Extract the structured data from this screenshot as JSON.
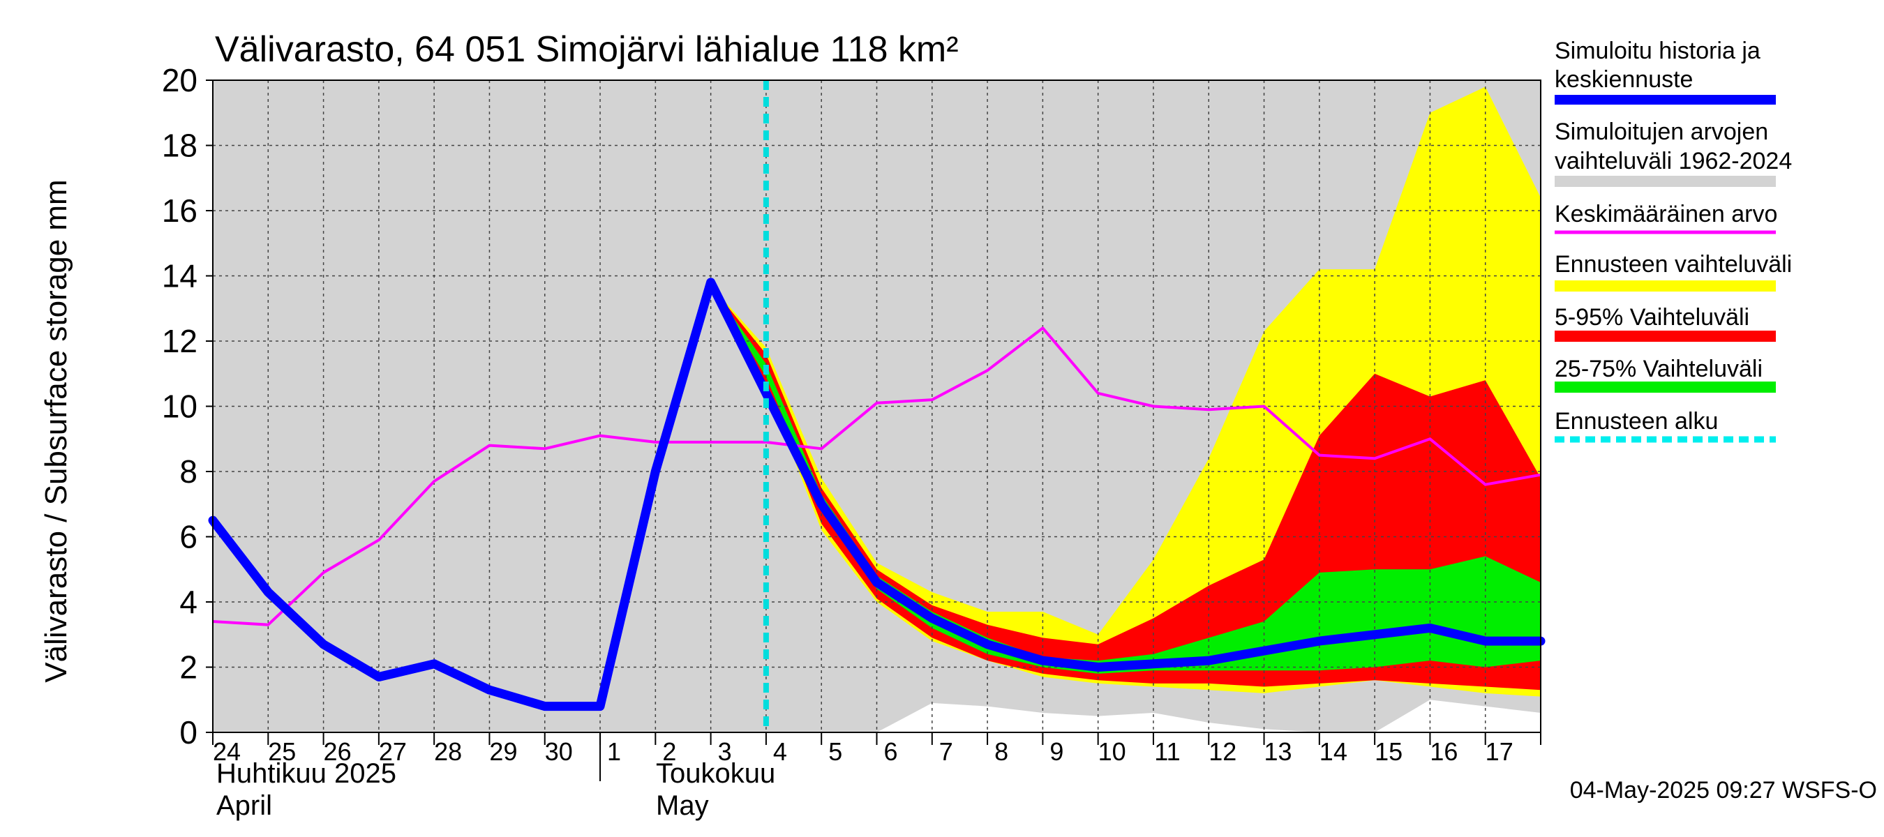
{
  "chart_data": {
    "type": "area",
    "title": "Välivarasto, 64 051 Simojärvi lähialue 118 km²",
    "ylabel": "Välivarasto / Subsurface storage  mm",
    "ylim": [
      0,
      20
    ],
    "yticks": [
      0,
      2,
      4,
      6,
      8,
      10,
      12,
      14,
      16,
      18,
      20
    ],
    "grid": true,
    "x_day_labels": [
      "24",
      "25",
      "26",
      "27",
      "28",
      "29",
      "30",
      "1",
      "2",
      "3",
      "4",
      "5",
      "6",
      "7",
      "8",
      "9",
      "10",
      "11",
      "12",
      "13",
      "14",
      "15",
      "16",
      "17"
    ],
    "month_labels": [
      {
        "fi": "Huhtikuu  2025",
        "en": "April"
      },
      {
        "fi": "Toukokuu",
        "en": "May"
      }
    ],
    "forecast_start_x": 10,
    "x": [
      0,
      1,
      2,
      3,
      4,
      5,
      6,
      7,
      8,
      9,
      10,
      11,
      12,
      13,
      14,
      15,
      16,
      17,
      18,
      19,
      20,
      21,
      22,
      23,
      24
    ],
    "hist_range": {
      "low": [
        null,
        null,
        null,
        null,
        null,
        null,
        null,
        null,
        null,
        null,
        null,
        null,
        0,
        0.9,
        0.8,
        0.6,
        0.5,
        0.6,
        0.3,
        0.1,
        0,
        0,
        1.0,
        0.8,
        0.6
      ],
      "high": [
        20,
        20,
        20,
        20,
        20,
        20,
        20,
        20,
        20,
        20,
        20,
        20,
        20,
        20,
        20,
        20,
        20,
        20,
        20,
        20,
        20,
        20,
        20,
        20,
        20
      ]
    },
    "forecast_range": {
      "low": [
        null,
        null,
        null,
        null,
        null,
        null,
        null,
        null,
        null,
        13.7,
        10.6,
        6.2,
        4.0,
        2.8,
        2.2,
        1.7,
        1.5,
        1.4,
        1.3,
        1.2,
        1.4,
        1.6,
        1.4,
        1.2,
        1.1
      ],
      "high": [
        null,
        null,
        null,
        null,
        null,
        null,
        null,
        null,
        null,
        13.7,
        11.8,
        7.8,
        5.2,
        4.3,
        3.7,
        3.7,
        3.0,
        5.3,
        8.4,
        12.3,
        14.2,
        14.2,
        19.0,
        19.8,
        16.4
      ]
    },
    "p5_95": {
      "low": [
        null,
        null,
        null,
        null,
        null,
        null,
        null,
        null,
        null,
        13.7,
        10.7,
        6.4,
        4.1,
        2.9,
        2.2,
        1.8,
        1.6,
        1.5,
        1.5,
        1.4,
        1.5,
        1.6,
        1.5,
        1.4,
        1.3
      ],
      "high": [
        null,
        null,
        null,
        null,
        null,
        null,
        null,
        null,
        null,
        13.7,
        11.6,
        7.5,
        5.0,
        3.9,
        3.3,
        2.9,
        2.7,
        3.5,
        4.5,
        5.3,
        9.1,
        11.0,
        10.3,
        10.8,
        7.8
      ]
    },
    "p25_75": {
      "low": [
        null,
        null,
        null,
        null,
        null,
        null,
        null,
        null,
        null,
        13.7,
        10.9,
        6.9,
        4.4,
        3.2,
        2.4,
        2.0,
        1.8,
        1.9,
        1.9,
        1.9,
        1.9,
        2.0,
        2.2,
        2.0,
        2.2
      ],
      "high": [
        null,
        null,
        null,
        null,
        null,
        null,
        null,
        null,
        null,
        13.7,
        11.3,
        7.3,
        4.8,
        3.7,
        2.9,
        2.3,
        2.2,
        2.4,
        2.9,
        3.4,
        4.9,
        5.0,
        5.0,
        5.4,
        4.6
      ]
    },
    "series": [
      {
        "name": "Keskimääräinen arvo",
        "color": "#ff00ff",
        "values": [
          3.4,
          3.3,
          4.9,
          5.9,
          7.7,
          8.8,
          8.7,
          9.1,
          8.9,
          8.9,
          8.9,
          8.7,
          10.1,
          10.2,
          11.1,
          12.4,
          10.4,
          10.0,
          9.9,
          10.0,
          8.5,
          8.4,
          9.0,
          7.6,
          7.9
        ]
      },
      {
        "name": "Simuloitu historia ja keskiennuste",
        "color": "#0000ff",
        "values": [
          6.5,
          4.3,
          2.7,
          1.7,
          2.1,
          1.3,
          0.8,
          0.8,
          8.0,
          13.8,
          10.4,
          7.0,
          4.6,
          3.5,
          2.7,
          2.2,
          2.0,
          2.1,
          2.2,
          2.5,
          2.8,
          3.0,
          3.2,
          2.8,
          2.8
        ]
      }
    ]
  },
  "legend": [
    {
      "label": "Simuloitu historia ja keskiennuste",
      "color": "#0000ff",
      "style": "line"
    },
    {
      "label": "Simuloitujen arvojen vaihteluväli 1962-2024",
      "color": "#d3d3d3",
      "style": "band"
    },
    {
      "label": "Keskimääräinen arvo",
      "color": "#ff00ff",
      "style": "thin"
    },
    {
      "label": "Ennusteen vaihteluväli",
      "color": "#ffff00",
      "style": "band"
    },
    {
      "label": "5-95% Vaihteluväli",
      "color": "#ff0000",
      "style": "band"
    },
    {
      "label": "25-75% Vaihteluväli",
      "color": "#00ee00",
      "style": "band"
    },
    {
      "label": "Ennusteen alku",
      "color": "#00eeee",
      "style": "dashed"
    }
  ],
  "footer": {
    "timestamp": "04-May-2025 09:27 WSFS-O"
  }
}
